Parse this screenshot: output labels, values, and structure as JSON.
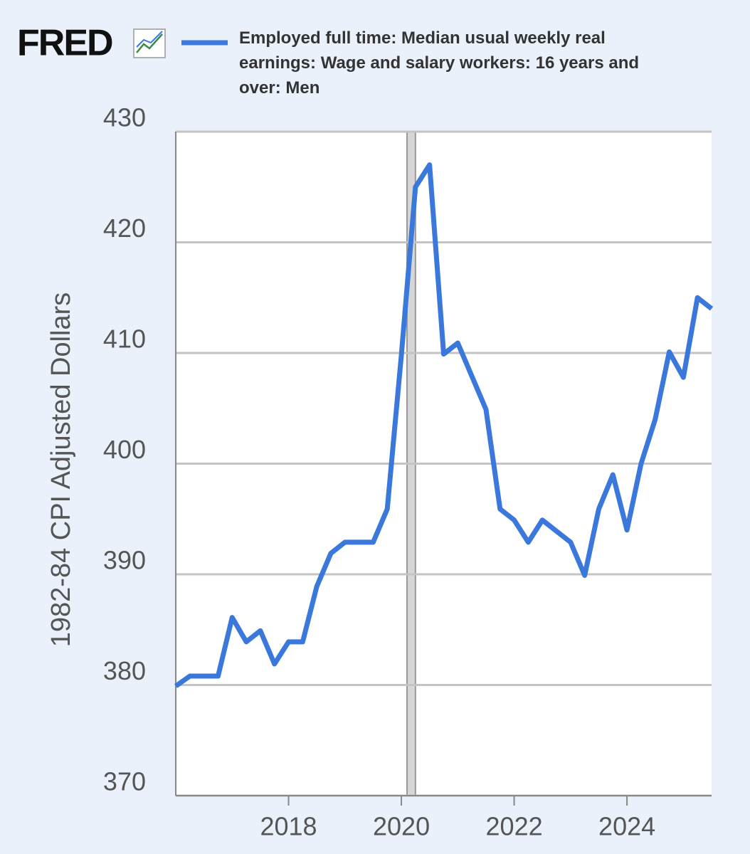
{
  "logo": "FRED",
  "chart_data": {
    "type": "line",
    "series": [
      {
        "name": "Employed full time: Median usual weekly real earnings: Wage and salary workers: 16 years and over: Men",
        "color": "#3b78db",
        "x": [
          2016.0,
          2016.25,
          2016.5,
          2016.75,
          2017.0,
          2017.25,
          2017.5,
          2017.75,
          2018.0,
          2018.25,
          2018.5,
          2018.75,
          2019.0,
          2019.25,
          2019.5,
          2019.75,
          2020.0,
          2020.25,
          2020.5,
          2020.75,
          2021.0,
          2021.25,
          2021.5,
          2021.75,
          2022.0,
          2022.25,
          2022.5,
          2022.75,
          2023.0,
          2023.25,
          2023.5,
          2023.75,
          2024.0,
          2024.25,
          2024.5,
          2024.75,
          2025.0,
          2025.25,
          2025.5
        ],
        "values": [
          379.9,
          380.8,
          380.8,
          380.8,
          386.1,
          383.9,
          384.9,
          381.9,
          383.9,
          383.9,
          388.9,
          391.9,
          392.9,
          392.9,
          392.9,
          395.9,
          409.8,
          425.0,
          427.0,
          409.9,
          410.9,
          407.9,
          404.9,
          395.9,
          394.9,
          392.9,
          394.9,
          393.9,
          392.9,
          389.9,
          395.9,
          399.0,
          394.0,
          400.0,
          404.0,
          410.1,
          407.8,
          415.0,
          414.0
        ]
      }
    ],
    "y_label": "1982-84 CPI Adjusted Dollars",
    "xlim": [
      2016.0,
      2025.5
    ],
    "xticks": [
      2018,
      2020,
      2022,
      2024
    ],
    "ylim": [
      370,
      430
    ],
    "yticks": [
      370,
      380,
      390,
      400,
      410,
      420,
      430
    ],
    "grid": true,
    "recession": [
      2020.1,
      2020.25
    ]
  }
}
